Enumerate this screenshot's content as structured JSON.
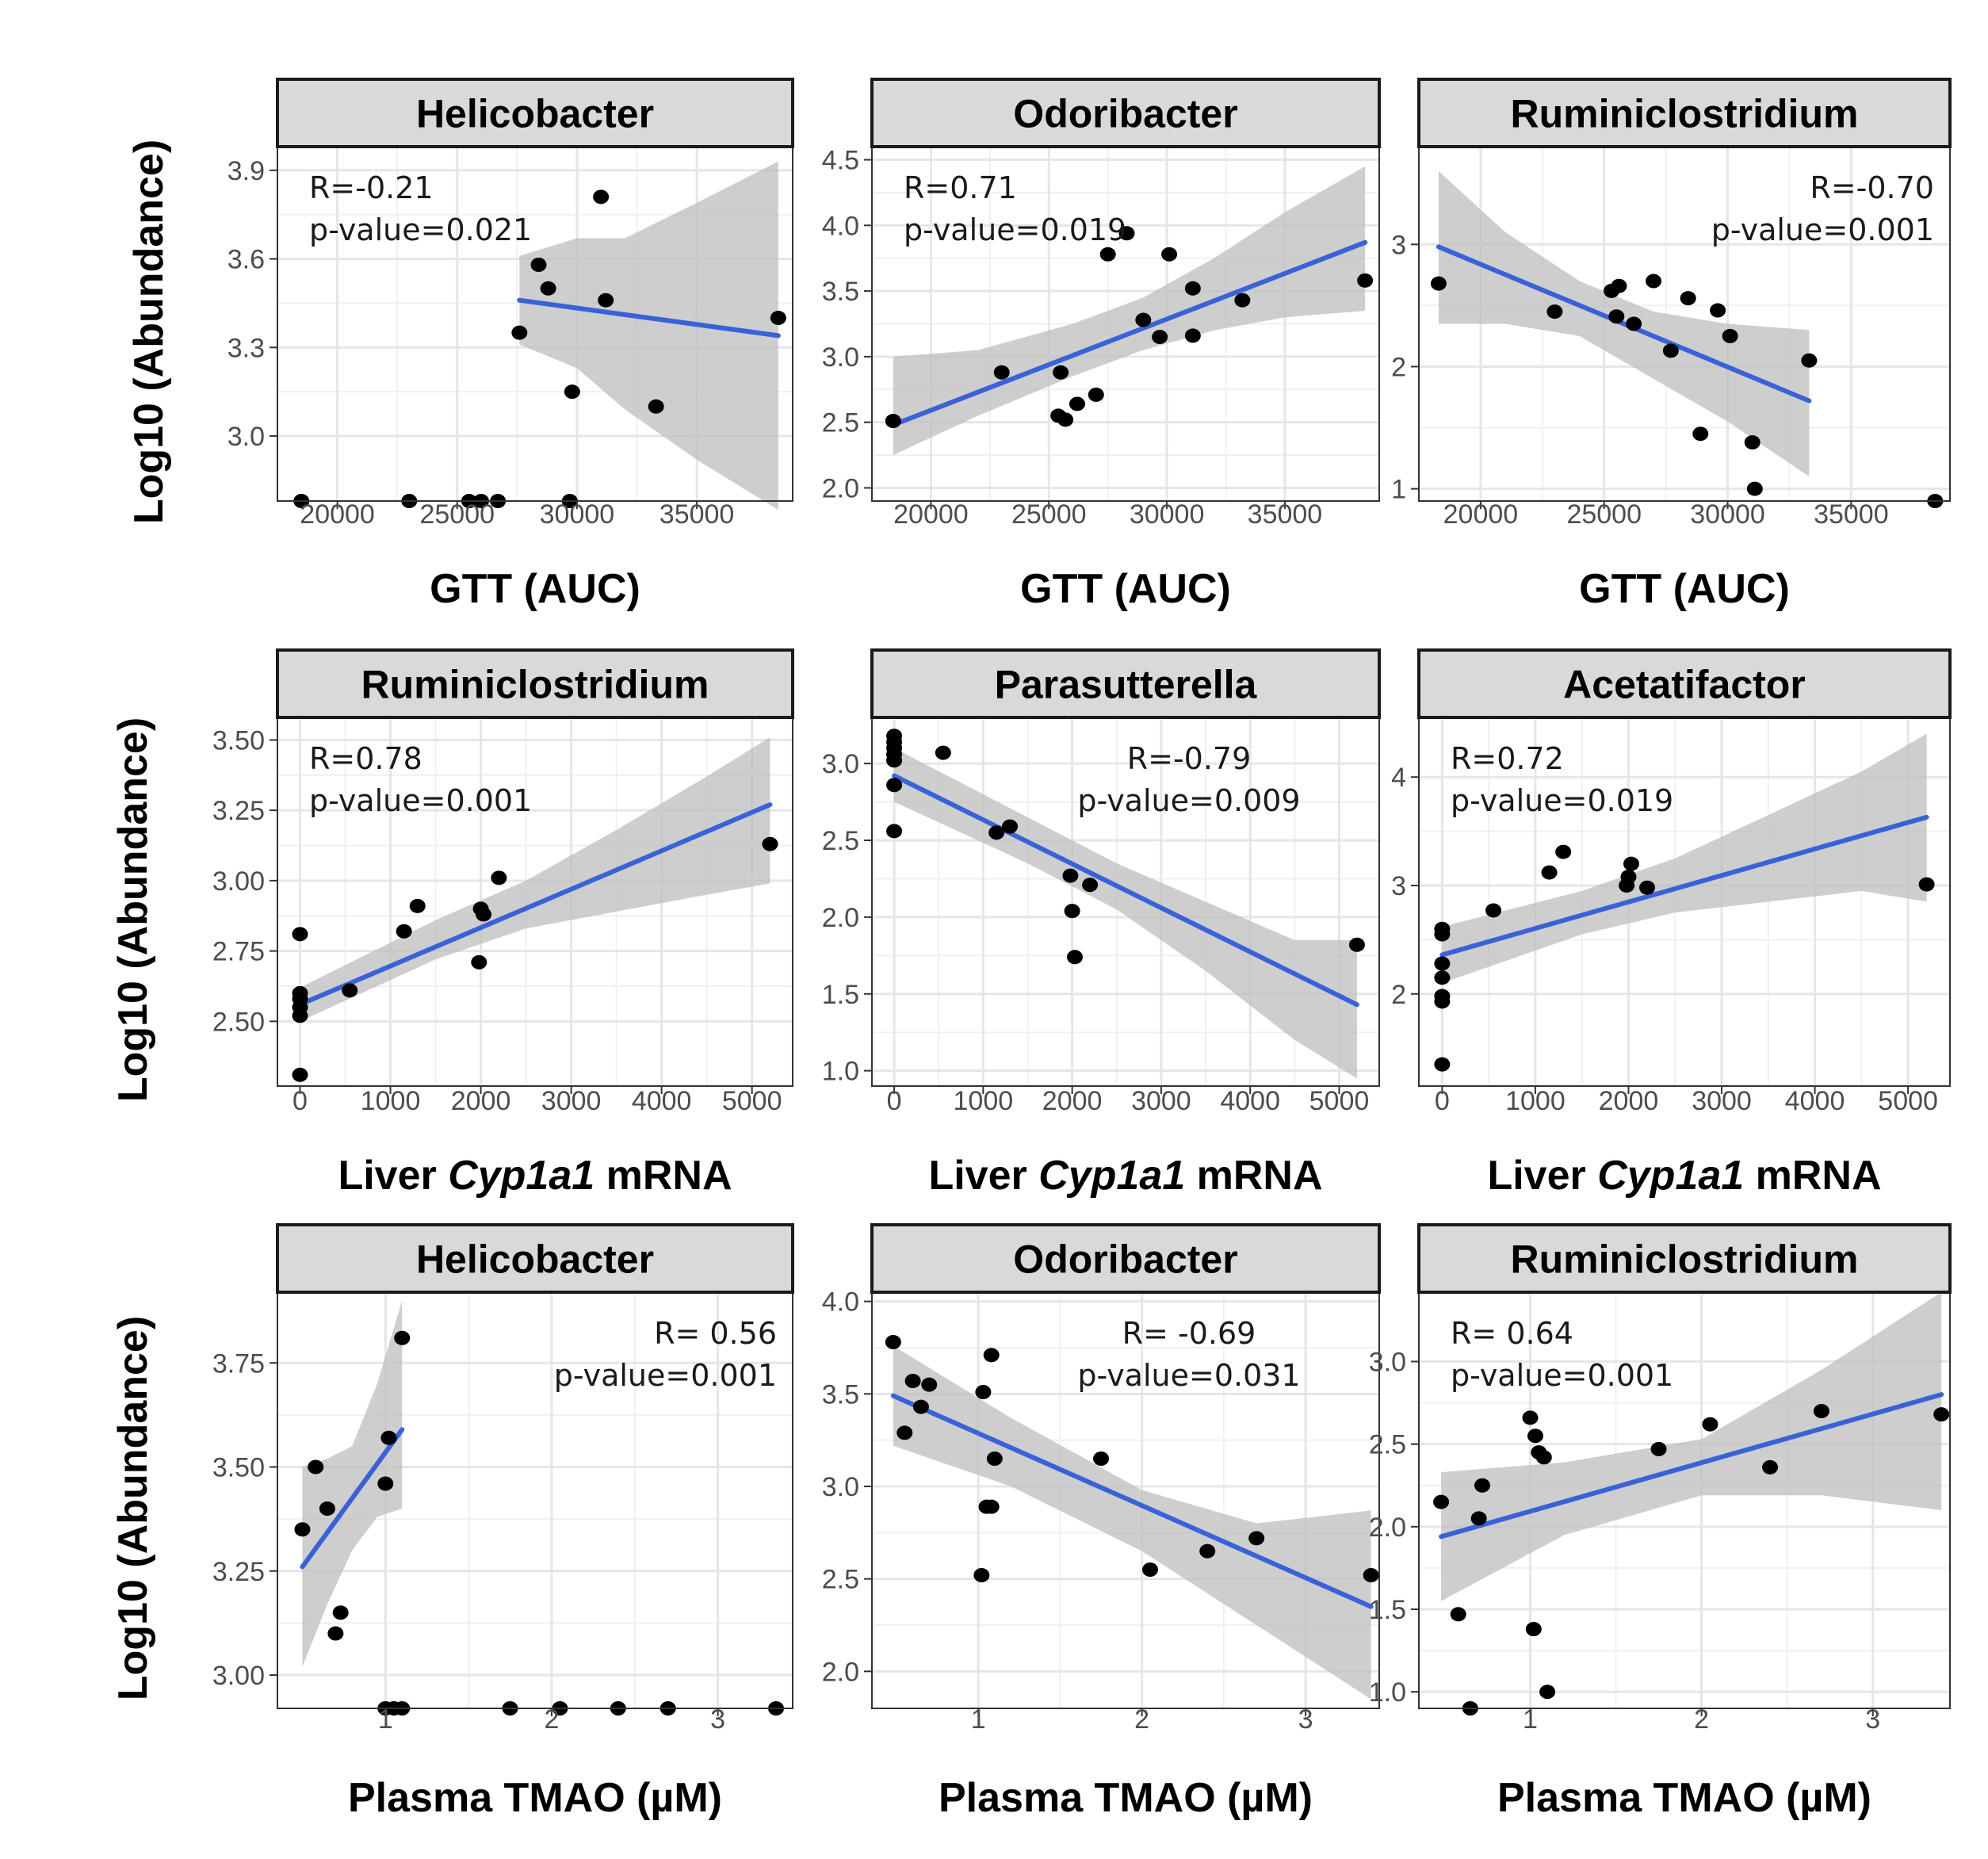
{
  "figure": {
    "ylabel": "Log10 (Abundance)",
    "colors": {
      "line": "#3a62d8",
      "band": "#bdbdbd",
      "point": "#000000",
      "strip": "#d9d9d9",
      "grid": "#e6e6e6"
    }
  },
  "chart_data": [
    {
      "type": "scatter",
      "title": "Helicobacter",
      "xlabel": "GTT (AUC)",
      "xlabel_parts": [
        "GTT (AUC)"
      ],
      "xlim": [
        17500,
        39000
      ],
      "ylim": [
        2.78,
        3.98
      ],
      "xticks": [
        20000,
        25000,
        30000,
        35000
      ],
      "yticks": [
        3.0,
        3.3,
        3.6,
        3.9
      ],
      "ytick_labels": [
        "3.0",
        "3.3",
        "3.6",
        "3.9"
      ],
      "annotation": [
        "R=-0.21",
        "p-value=0.021"
      ],
      "annot_pos": "top-left",
      "points": [
        [
          18500,
          2.78
        ],
        [
          23000,
          2.78
        ],
        [
          25500,
          2.78
        ],
        [
          26000,
          2.78
        ],
        [
          26700,
          2.78
        ],
        [
          29700,
          2.78
        ],
        [
          27600,
          3.35
        ],
        [
          28400,
          3.58
        ],
        [
          28800,
          3.5
        ],
        [
          29800,
          3.15
        ],
        [
          31000,
          3.81
        ],
        [
          31200,
          3.46
        ],
        [
          33300,
          3.1
        ],
        [
          38400,
          3.4
        ]
      ],
      "fit": {
        "x0": 27600,
        "x1": 38400,
        "y0": 3.46,
        "y1": 3.34
      },
      "band": [
        [
          27600,
          3.31,
          3.61
        ],
        [
          30000,
          3.23,
          3.67
        ],
        [
          32000,
          3.09,
          3.67
        ],
        [
          35000,
          2.92,
          3.79
        ],
        [
          38400,
          2.75,
          3.93
        ]
      ]
    },
    {
      "type": "scatter",
      "title": "Odoribacter",
      "xlabel": "GTT (AUC)",
      "xlabel_parts": [
        "GTT (AUC)"
      ],
      "xlim": [
        17500,
        39000
      ],
      "ylim": [
        1.9,
        4.6
      ],
      "xticks": [
        20000,
        25000,
        30000,
        35000
      ],
      "yticks": [
        2.0,
        2.5,
        3.0,
        3.5,
        4.0,
        4.5
      ],
      "ytick_labels": [
        "2.0",
        "2.5",
        "3.0",
        "3.5",
        "4.0",
        "4.5"
      ],
      "annotation": [
        "R=0.71",
        "p-value=0.019"
      ],
      "annot_pos": "top-left",
      "points": [
        [
          18400,
          2.51
        ],
        [
          23000,
          2.88
        ],
        [
          25400,
          2.55
        ],
        [
          25500,
          2.88
        ],
        [
          25700,
          2.52
        ],
        [
          26200,
          2.64
        ],
        [
          27000,
          2.71
        ],
        [
          27500,
          3.78
        ],
        [
          28300,
          3.94
        ],
        [
          29000,
          3.28
        ],
        [
          29700,
          3.15
        ],
        [
          30100,
          3.78
        ],
        [
          31100,
          3.16
        ],
        [
          31100,
          3.52
        ],
        [
          33200,
          3.43
        ],
        [
          38400,
          3.58
        ]
      ],
      "fit": {
        "x0": 18400,
        "x1": 38400,
        "y0": 2.48,
        "y1": 3.87
      },
      "band": [
        [
          18400,
          2.25,
          3.0
        ],
        [
          22000,
          2.55,
          3.05
        ],
        [
          26000,
          2.85,
          3.25
        ],
        [
          29000,
          3.05,
          3.45
        ],
        [
          32000,
          3.2,
          3.75
        ],
        [
          35000,
          3.3,
          4.1
        ],
        [
          38400,
          3.35,
          4.45
        ]
      ]
    },
    {
      "type": "scatter",
      "title": "Ruminiclostridium",
      "xlabel": "GTT (AUC)",
      "xlabel_parts": [
        "GTT (AUC)"
      ],
      "xlim": [
        17500,
        39000
      ],
      "ylim": [
        0.9,
        3.8
      ],
      "xticks": [
        20000,
        25000,
        30000,
        35000
      ],
      "yticks": [
        1,
        2,
        3
      ],
      "ytick_labels": [
        "1",
        "2",
        "3"
      ],
      "annotation": [
        "R=-0.70",
        "p-value=0.001"
      ],
      "annot_pos": "top-right",
      "points": [
        [
          18300,
          2.68
        ],
        [
          23000,
          2.45
        ],
        [
          25300,
          2.62
        ],
        [
          25500,
          2.41
        ],
        [
          25600,
          2.66
        ],
        [
          26200,
          2.35
        ],
        [
          27000,
          2.7
        ],
        [
          27700,
          2.13
        ],
        [
          28400,
          2.56
        ],
        [
          28900,
          1.45
        ],
        [
          29600,
          2.46
        ],
        [
          30100,
          2.25
        ],
        [
          31000,
          1.38
        ],
        [
          31100,
          1.0
        ],
        [
          33300,
          2.05
        ],
        [
          38400,
          0.88
        ]
      ],
      "fit": {
        "x0": 18300,
        "x1": 33300,
        "y0": 2.98,
        "y1": 1.72
      },
      "band": [
        [
          18300,
          2.35,
          3.6
        ],
        [
          21000,
          2.35,
          3.1
        ],
        [
          24000,
          2.25,
          2.7
        ],
        [
          27000,
          1.9,
          2.45
        ],
        [
          30000,
          1.55,
          2.35
        ],
        [
          33300,
          1.1,
          2.3
        ]
      ]
    },
    {
      "type": "scatter",
      "title": "Ruminiclostridium",
      "xlabel": "Liver Cyp1a1 mRNA",
      "xlabel_parts": [
        "Liver ",
        "Cyp1a1",
        " mRNA"
      ],
      "xlim": [
        -250,
        5450
      ],
      "ylim": [
        2.27,
        3.58
      ],
      "xticks": [
        0,
        1000,
        2000,
        3000,
        4000,
        5000
      ],
      "yticks": [
        2.5,
        2.75,
        3.0,
        3.25,
        3.5
      ],
      "ytick_labels": [
        "2.50",
        "2.75",
        "3.00",
        "3.25",
        "3.50"
      ],
      "annotation": [
        "R=0.78",
        "p-value=0.001"
      ],
      "annot_pos": "top-left",
      "points": [
        [
          0,
          2.31
        ],
        [
          0,
          2.52
        ],
        [
          0,
          2.55
        ],
        [
          0,
          2.58
        ],
        [
          0,
          2.6
        ],
        [
          0,
          2.81
        ],
        [
          550,
          2.61
        ],
        [
          1150,
          2.82
        ],
        [
          1300,
          2.91
        ],
        [
          1980,
          2.71
        ],
        [
          2000,
          2.9
        ],
        [
          2030,
          2.88
        ],
        [
          2200,
          3.01
        ],
        [
          5200,
          3.13
        ]
      ],
      "fit": {
        "x0": 0,
        "x1": 5200,
        "y0": 2.56,
        "y1": 3.27
      },
      "band": [
        [
          0,
          2.5,
          2.62
        ],
        [
          1500,
          2.72,
          2.86
        ],
        [
          2500,
          2.83,
          3.0
        ],
        [
          3500,
          2.89,
          3.18
        ],
        [
          4500,
          2.95,
          3.37
        ],
        [
          5200,
          2.99,
          3.51
        ]
      ]
    },
    {
      "type": "scatter",
      "title": "Parasutterella",
      "xlabel": "Liver Cyp1a1 mRNA",
      "xlabel_parts": [
        "Liver ",
        "Cyp1a1",
        " mRNA"
      ],
      "xlim": [
        -250,
        5450
      ],
      "ylim": [
        0.9,
        3.3
      ],
      "xticks": [
        0,
        1000,
        2000,
        3000,
        4000,
        5000
      ],
      "yticks": [
        1.0,
        1.5,
        2.0,
        2.5,
        3.0
      ],
      "ytick_labels": [
        "1.0",
        "1.5",
        "2.0",
        "2.5",
        "3.0"
      ],
      "annotation": [
        "R=-0.79",
        "p-value=0.009"
      ],
      "annot_pos": "top-center",
      "points": [
        [
          0,
          2.56
        ],
        [
          0,
          2.86
        ],
        [
          0,
          3.02
        ],
        [
          0,
          3.06
        ],
        [
          0,
          3.1
        ],
        [
          0,
          3.14
        ],
        [
          0,
          3.18
        ],
        [
          550,
          3.07
        ],
        [
          1150,
          2.55
        ],
        [
          1300,
          2.59
        ],
        [
          1980,
          2.27
        ],
        [
          2000,
          2.04
        ],
        [
          2030,
          1.74
        ],
        [
          2200,
          2.21
        ],
        [
          5200,
          1.82
        ]
      ],
      "fit": {
        "x0": 0,
        "x1": 5200,
        "y0": 2.92,
        "y1": 1.43
      },
      "band": [
        [
          0,
          2.75,
          3.1
        ],
        [
          1500,
          2.35,
          2.65
        ],
        [
          2500,
          2.05,
          2.35
        ],
        [
          3500,
          1.65,
          2.1
        ],
        [
          4500,
          1.2,
          1.85
        ],
        [
          5200,
          0.95,
          1.85
        ]
      ]
    },
    {
      "type": "scatter",
      "title": "Acetatifactor",
      "xlabel": "Liver Cyp1a1 mRNA",
      "xlabel_parts": [
        "Liver ",
        "Cyp1a1",
        " mRNA"
      ],
      "xlim": [
        -250,
        5450
      ],
      "ylim": [
        1.15,
        4.55
      ],
      "xticks": [
        0,
        1000,
        2000,
        3000,
        4000,
        5000
      ],
      "yticks": [
        2,
        3,
        4
      ],
      "ytick_labels": [
        "2",
        "3",
        "4"
      ],
      "annotation": [
        "R=0.72",
        "p-value=0.019"
      ],
      "annot_pos": "top-left",
      "points": [
        [
          0,
          1.35
        ],
        [
          0,
          1.93
        ],
        [
          0,
          1.98
        ],
        [
          0,
          2.15
        ],
        [
          0,
          2.28
        ],
        [
          0,
          2.55
        ],
        [
          0,
          2.6
        ],
        [
          550,
          2.77
        ],
        [
          1150,
          3.12
        ],
        [
          1300,
          3.31
        ],
        [
          1980,
          3.0
        ],
        [
          2000,
          3.08
        ],
        [
          2030,
          3.2
        ],
        [
          2200,
          2.98
        ],
        [
          5200,
          3.01
        ]
      ],
      "fit": {
        "x0": 0,
        "x1": 5200,
        "y0": 2.36,
        "y1": 3.63
      },
      "band": [
        [
          0,
          2.1,
          2.62
        ],
        [
          1500,
          2.55,
          2.95
        ],
        [
          2500,
          2.75,
          3.25
        ],
        [
          3500,
          2.85,
          3.65
        ],
        [
          4500,
          2.95,
          4.05
        ],
        [
          5200,
          2.85,
          4.4
        ]
      ]
    },
    {
      "type": "scatter",
      "title": "Helicobacter",
      "xlabel": "Plasma TMAO (µM)",
      "xlabel_parts": [
        "Plasma TMAO (µM)"
      ],
      "xlim": [
        0.35,
        3.45
      ],
      "ylim": [
        2.92,
        3.92
      ],
      "xticks": [
        1,
        2,
        3
      ],
      "yticks": [
        3.0,
        3.25,
        3.5,
        3.75
      ],
      "ytick_labels": [
        "3.00",
        "3.25",
        "3.50",
        "3.75"
      ],
      "annotation": [
        "R= 0.56",
        "p-value=0.001"
      ],
      "annot_pos": "top-right",
      "points": [
        [
          0.5,
          3.35
        ],
        [
          0.58,
          3.5
        ],
        [
          0.65,
          3.4
        ],
        [
          0.7,
          3.1
        ],
        [
          0.73,
          3.15
        ],
        [
          1.0,
          3.46
        ],
        [
          1.02,
          3.57
        ],
        [
          1.1,
          3.81
        ],
        [
          1.0,
          2.92
        ],
        [
          1.05,
          2.92
        ],
        [
          1.1,
          2.92
        ],
        [
          1.75,
          2.92
        ],
        [
          2.05,
          2.92
        ],
        [
          2.4,
          2.92
        ],
        [
          2.7,
          2.92
        ],
        [
          3.35,
          2.92
        ]
      ],
      "fit": {
        "x0": 0.5,
        "x1": 1.1,
        "y0": 3.26,
        "y1": 3.59
      },
      "band": [
        [
          0.5,
          3.02,
          3.5
        ],
        [
          0.65,
          3.17,
          3.52
        ],
        [
          0.8,
          3.3,
          3.55
        ],
        [
          0.95,
          3.38,
          3.7
        ],
        [
          1.1,
          3.4,
          3.9
        ]
      ]
    },
    {
      "type": "scatter",
      "title": "Odoribacter",
      "xlabel": "Plasma TMAO (µM)",
      "xlabel_parts": [
        "Plasma TMAO (µM)"
      ],
      "xlim": [
        0.35,
        3.45
      ],
      "ylim": [
        1.8,
        4.05
      ],
      "xticks": [
        1,
        2,
        3
      ],
      "yticks": [
        2.0,
        2.5,
        3.0,
        3.5,
        4.0
      ],
      "ytick_labels": [
        "2.0",
        "2.5",
        "3.0",
        "3.5",
        "4.0"
      ],
      "annotation": [
        "R= -0.69",
        "p-value=0.031"
      ],
      "annot_pos": "top-center",
      "points": [
        [
          0.48,
          3.78
        ],
        [
          0.55,
          3.29
        ],
        [
          0.6,
          3.57
        ],
        [
          0.65,
          3.43
        ],
        [
          0.7,
          3.55
        ],
        [
          1.02,
          2.52
        ],
        [
          1.03,
          3.51
        ],
        [
          1.05,
          2.89
        ],
        [
          1.08,
          3.71
        ],
        [
          1.08,
          2.89
        ],
        [
          1.1,
          3.15
        ],
        [
          1.75,
          3.15
        ],
        [
          2.05,
          2.55
        ],
        [
          2.4,
          2.65
        ],
        [
          2.7,
          2.72
        ],
        [
          3.4,
          2.52
        ]
      ],
      "fit": {
        "x0": 0.48,
        "x1": 3.4,
        "y0": 3.49,
        "y1": 2.35
      },
      "band": [
        [
          0.48,
          3.22,
          3.76
        ],
        [
          1.2,
          3.0,
          3.37
        ],
        [
          2.0,
          2.65,
          2.98
        ],
        [
          2.7,
          2.25,
          2.8
        ],
        [
          3.4,
          1.85,
          2.87
        ]
      ]
    },
    {
      "type": "scatter",
      "title": "Ruminiclostridium",
      "xlabel": "Plasma TMAO (µM)",
      "xlabel_parts": [
        "Plasma TMAO (µM)"
      ],
      "xlim": [
        0.35,
        3.45
      ],
      "ylim": [
        0.9,
        3.42
      ],
      "xticks": [
        1,
        2,
        3
      ],
      "yticks": [
        1.0,
        1.5,
        2.0,
        2.5,
        3.0
      ],
      "ytick_labels": [
        "1.0",
        "1.5",
        "2.0",
        "2.5",
        "3.0"
      ],
      "annotation": [
        "R= 0.64",
        "p-value=0.001"
      ],
      "annot_pos": "top-left",
      "points": [
        [
          0.48,
          2.15
        ],
        [
          0.58,
          1.47
        ],
        [
          0.65,
          0.9
        ],
        [
          0.7,
          2.05
        ],
        [
          0.72,
          2.25
        ],
        [
          1.0,
          2.66
        ],
        [
          1.02,
          1.38
        ],
        [
          1.03,
          2.55
        ],
        [
          1.05,
          2.45
        ],
        [
          1.08,
          2.42
        ],
        [
          1.1,
          1.0
        ],
        [
          1.75,
          2.47
        ],
        [
          2.05,
          2.62
        ],
        [
          2.4,
          2.36
        ],
        [
          2.7,
          2.7
        ],
        [
          3.4,
          2.68
        ]
      ],
      "fit": {
        "x0": 0.48,
        "x1": 3.4,
        "y0": 1.94,
        "y1": 2.8
      },
      "band": [
        [
          0.48,
          1.55,
          2.33
        ],
        [
          1.2,
          1.95,
          2.39
        ],
        [
          2.0,
          2.19,
          2.53
        ],
        [
          2.7,
          2.19,
          2.95
        ],
        [
          3.4,
          2.1,
          3.42
        ]
      ]
    }
  ]
}
